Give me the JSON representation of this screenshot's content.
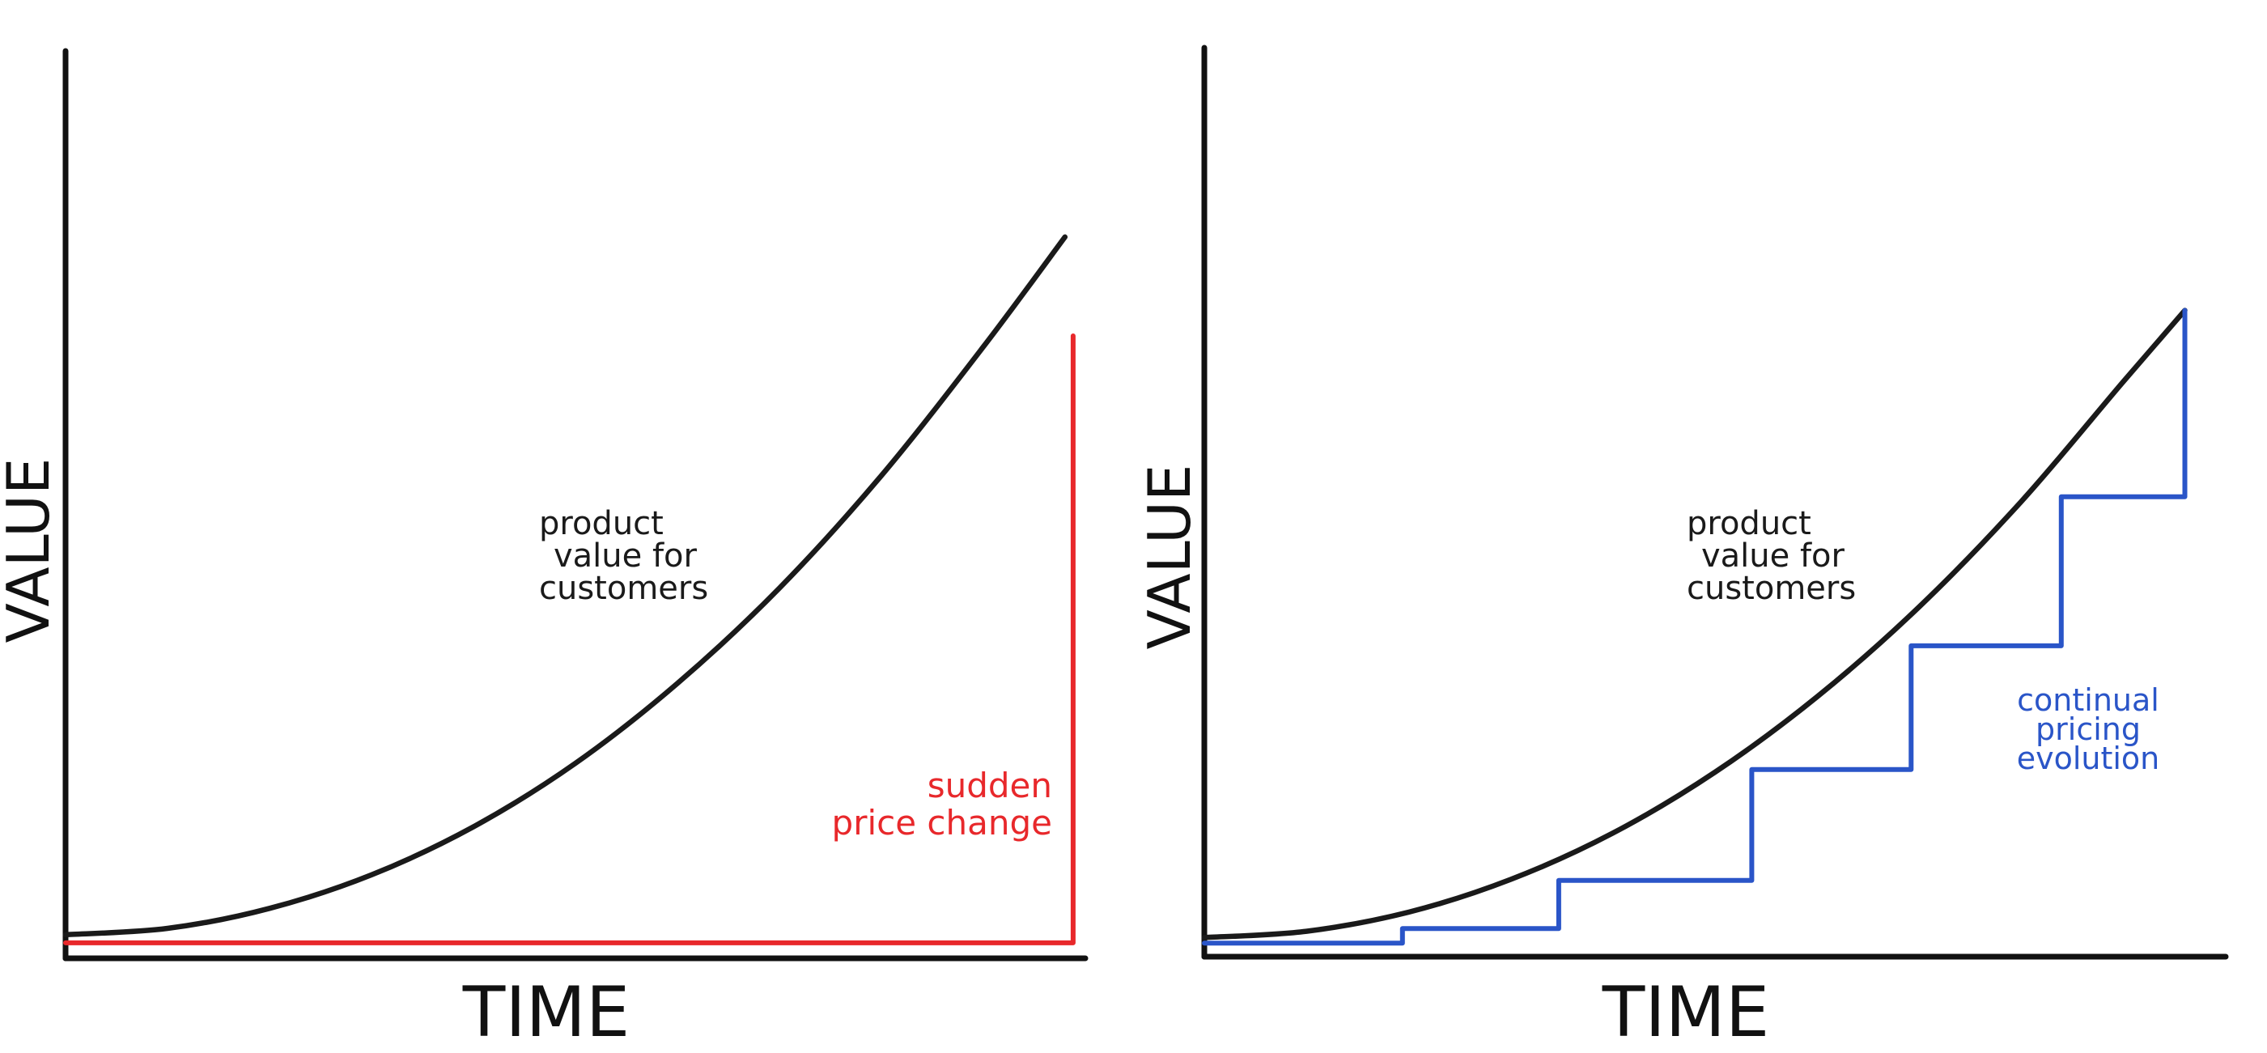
{
  "chart_data": [
    {
      "type": "line",
      "title": "",
      "xlabel": "TIME",
      "ylabel": "VALUE",
      "xlim": [
        0,
        100
      ],
      "ylim": [
        0,
        100
      ],
      "grid": false,
      "ticks": false,
      "series": [
        {
          "name": "product value for customers",
          "color": "#1a1a1a",
          "x": [
            0,
            10,
            20,
            30,
            40,
            50,
            60,
            70,
            80,
            90,
            98
          ],
          "y": [
            2.6,
            3.3,
            5.5,
            9.2,
            14.5,
            21.5,
            30.3,
            40.8,
            53.2,
            67.4,
            79.5
          ]
        },
        {
          "name": "sudden price change",
          "color": "#e8282b",
          "step": true,
          "x": [
            0,
            98.8,
            98.8
          ],
          "y": [
            1.7,
            1.7,
            68.6
          ]
        }
      ],
      "annotations": [
        {
          "text_lines": [
            "product",
            "value for",
            "customers"
          ],
          "color": "#1a1a1a"
        },
        {
          "text_lines": [
            "sudden",
            "price change"
          ],
          "color": "#e8282b"
        }
      ]
    },
    {
      "type": "line",
      "title": "",
      "xlabel": "TIME",
      "ylabel": "VALUE",
      "xlim": [
        0,
        100
      ],
      "ylim": [
        0,
        100
      ],
      "grid": false,
      "ticks": false,
      "series": [
        {
          "name": "product value for customers",
          "color": "#1a1a1a",
          "x": [
            0,
            10,
            20,
            30,
            40,
            50,
            60,
            70,
            80,
            90,
            96
          ],
          "y": [
            2.1,
            2.8,
            4.9,
            8.5,
            13.6,
            20.3,
            28.6,
            38.5,
            50.1,
            63.3,
            71.1
          ]
        },
        {
          "name": "continual pricing evolution",
          "color": "#2a55c8",
          "step": true,
          "x": [
            0,
            19.4,
            19.4,
            34.7,
            34.7,
            53.6,
            53.6,
            69.2,
            69.2,
            83.9,
            83.9,
            96,
            96
          ],
          "y": [
            1.5,
            1.5,
            3.1,
            3.1,
            8.4,
            8.4,
            20.6,
            20.6,
            34.2,
            34.2,
            50.6,
            50.6,
            71.1
          ]
        }
      ],
      "annotations": [
        {
          "text_lines": [
            "product",
            "value for",
            "customers"
          ],
          "color": "#1a1a1a"
        },
        {
          "text_lines": [
            "continual",
            "pricing",
            "evolution"
          ],
          "color": "#2a55c8"
        }
      ]
    }
  ]
}
